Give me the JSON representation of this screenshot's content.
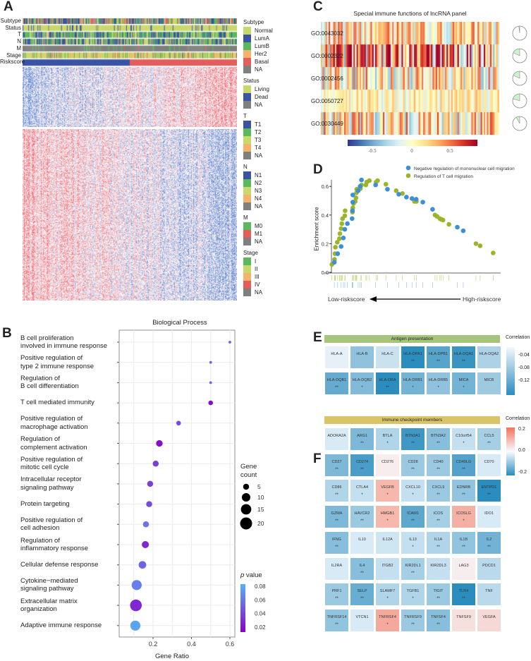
{
  "panels": {
    "a": "A",
    "b": "B",
    "c": "C",
    "d": "D",
    "e": "E",
    "f": "F"
  },
  "panel_a": {
    "annotation_rows": [
      "Subtype",
      "Status",
      "T",
      "N",
      "M",
      "Stage",
      "Riskscore"
    ],
    "riskscore_colors": {
      "low": "#3a53a4",
      "high": "#e35d5d"
    },
    "legend": [
      {
        "title": "Subtype",
        "items": [
          {
            "label": "Normal",
            "color": "#c9d86b"
          },
          {
            "label": "LumA",
            "color": "#3a53a4"
          },
          {
            "label": "LumB",
            "color": "#5cb85c"
          },
          {
            "label": "Her2",
            "color": "#f6b26b"
          },
          {
            "label": "Basal",
            "color": "#e35d5d"
          },
          {
            "label": "NA",
            "color": "#7f7f7f"
          }
        ]
      },
      {
        "title": "Status",
        "items": [
          {
            "label": "Living",
            "color": "#c9d86b"
          },
          {
            "label": "Dead",
            "color": "#3a53a4"
          },
          {
            "label": "NA",
            "color": "#7f7f7f"
          }
        ]
      },
      {
        "title": "T",
        "items": [
          {
            "label": "T1",
            "color": "#3a53a4"
          },
          {
            "label": "T2",
            "color": "#5cb85c"
          },
          {
            "label": "T3",
            "color": "#c9d86b"
          },
          {
            "label": "T4",
            "color": "#f6b26b"
          },
          {
            "label": "NA",
            "color": "#7f7f7f"
          }
        ]
      },
      {
        "title": "N",
        "items": [
          {
            "label": "N1",
            "color": "#3a53a4"
          },
          {
            "label": "N2",
            "color": "#5cb85c"
          },
          {
            "label": "N3",
            "color": "#c9d86b"
          },
          {
            "label": "N4",
            "color": "#f6b26b"
          },
          {
            "label": "NA",
            "color": "#7f7f7f"
          }
        ]
      },
      {
        "title": "M",
        "items": [
          {
            "label": "M0",
            "color": "#5cb85c"
          },
          {
            "label": "M1",
            "color": "#e35d5d"
          },
          {
            "label": "NA",
            "color": "#7f7f7f"
          }
        ]
      },
      {
        "title": "Stage",
        "items": [
          {
            "label": "I",
            "color": "#5cb85c"
          },
          {
            "label": "II",
            "color": "#c9d86b"
          },
          {
            "label": "III",
            "color": "#f6b26b"
          },
          {
            "label": "IV",
            "color": "#e35d5d"
          },
          {
            "label": "NA",
            "color": "#7f7f7f"
          }
        ]
      }
    ]
  },
  "chart_data": [
    {
      "type": "scatter",
      "title": "Biological Process",
      "xlabel": "Gene Ratio",
      "xticks": [
        "0.2",
        "0.4",
        "0.6"
      ],
      "xlim": [
        0.02,
        0.64
      ],
      "categories": [
        "B cell proliferation\ninvolved in immune response",
        "Positive regulation of\ntype 2 immune response",
        "Regulation of\nB cell differentiation",
        "T cell mediated immunity",
        "Positive regulation of\nmacrophage activation",
        "Regulation of\ncomplement activation",
        "Positive regulation of\nmitotic cell cycle",
        "Intracellular receptor\nsignaling pathway",
        "Protein targeting",
        "Positive regulation of\ncell adhesion",
        "Regulation of\ninflammatory response",
        "Cellular defense response",
        "Cytokine−mediated\nsignaling pathway",
        "Extracellular matrix\norganization",
        "Adaptive immune response"
      ],
      "gene_ratio": [
        0.6,
        0.5,
        0.5,
        0.5,
        0.333,
        0.233,
        0.214,
        0.185,
        0.18,
        0.163,
        0.16,
        0.145,
        0.115,
        0.111,
        0.108
      ],
      "gene_count": [
        1,
        1,
        1,
        3,
        3,
        6,
        5,
        5,
        5,
        5,
        7,
        8,
        14,
        19,
        14
      ],
      "p_value": [
        0.05,
        0.055,
        0.055,
        0.02,
        0.045,
        0.02,
        0.04,
        0.04,
        0.045,
        0.06,
        0.03,
        0.055,
        0.065,
        0.03,
        0.08
      ],
      "size_legend": {
        "title": "Gene\ncount",
        "values": [
          "5",
          "10",
          "15",
          "20"
        ]
      },
      "color_legend": {
        "title": "p value",
        "ticks": [
          "0.08",
          "0.06",
          "0.04",
          "0.02"
        ],
        "low_color": "#8b00c9",
        "high_color": "#56b1f7"
      }
    },
    {
      "type": "heatmap",
      "title": "Special immune functions of lncRNA panel",
      "rows": [
        "GO:0043032",
        "GO:0002322",
        "GO:0002456",
        "GO:0050727",
        "GO:0030449"
      ],
      "pie_fraction": [
        0.02,
        0.18,
        0.18,
        0.2,
        0.08
      ],
      "colorbar_ticks": [
        "-0.5",
        "0",
        "0.5"
      ],
      "range": [
        -0.9,
        0.9
      ]
    },
    {
      "type": "scatter",
      "ylabel": "Enrichment score",
      "yticks": [
        "0.0",
        "0.2",
        "0.4",
        "0.6"
      ],
      "ylim": [
        0,
        0.7
      ],
      "xlim": [
        0,
        100
      ],
      "x_left_label": "Low-riskscore",
      "x_right_label": "High-riskscore",
      "series": [
        {
          "name": "Negative regulation of mononuclear cell migration",
          "color": "#3a8fd6",
          "x": [
            4.5,
            6.4,
            8.4,
            9.7,
            10.5,
            12.0,
            14.7,
            14.9,
            15.1,
            15.1,
            18.2,
            19.3,
            20.1,
            28.2,
            35.0,
            41.5,
            45.9,
            49.1,
            51.5,
            55.3,
            60.9,
            75.1,
            78.5
          ],
          "y": [
            0.07,
            0.13,
            0.18,
            0.24,
            0.3,
            0.34,
            0.375,
            0.43,
            0.49,
            0.54,
            0.57,
            0.6,
            0.645,
            0.61,
            0.58,
            0.545,
            0.525,
            0.515,
            0.51,
            0.49,
            0.44,
            0.315,
            0.29
          ]
        },
        {
          "name": "Regulation of T cell migration",
          "color": "#9bb52b",
          "x": [
            3.1,
            4.6,
            4.9,
            5.1,
            6.2,
            7.4,
            7.7,
            8.4,
            8.8,
            9.2,
            10.5,
            10.7,
            14.9,
            15.1,
            15.5,
            16.5,
            16.9,
            17.2,
            17.4,
            19.5,
            20.1,
            22.6,
            23.1,
            24.6,
            28.5,
            29.3,
            34.1,
            40.0,
            43.6,
            50.5,
            51.6,
            62.3,
            63.5,
            65.1,
            65.9,
            66.9,
            70.3,
            85.8,
            88.2,
            95.7
          ],
          "y": [
            0.055,
            0.09,
            0.13,
            0.175,
            0.21,
            0.235,
            0.27,
            0.305,
            0.34,
            0.375,
            0.395,
            0.43,
            0.42,
            0.45,
            0.48,
            0.495,
            0.52,
            0.555,
            0.58,
            0.585,
            0.61,
            0.61,
            0.63,
            0.64,
            0.63,
            0.64,
            0.615,
            0.57,
            0.55,
            0.495,
            0.495,
            0.4,
            0.39,
            0.375,
            0.37,
            0.365,
            0.335,
            0.2,
            0.185,
            0.135
          ]
        }
      ]
    },
    {
      "type": "heatmap",
      "title": "Antigen presentation",
      "header_color": "#a6c47a",
      "legend_title": "Correlation",
      "legend_ticks": [
        "-0.04",
        "-0.08",
        "-0.12"
      ],
      "range": [
        -0.16,
        0
      ],
      "cells": [
        [
          {
            "gene": "HLA-A",
            "v": -0.02,
            "sig": ""
          },
          {
            "gene": "HLA-B",
            "v": -0.08,
            "sig": ""
          },
          {
            "gene": "HLA-C",
            "v": -0.04,
            "sig": ""
          },
          {
            "gene": "HLA-DPA1",
            "v": -0.15,
            "sig": "**"
          },
          {
            "gene": "HLA-DPB1",
            "v": -0.12,
            "sig": "**"
          },
          {
            "gene": "HLA-DQA1",
            "v": -0.14,
            "sig": "**"
          },
          {
            "gene": "HLA-DQA2",
            "v": -0.06,
            "sig": ""
          }
        ],
        [
          {
            "gene": "HLA-DQB1",
            "v": -0.11,
            "sig": "**"
          },
          {
            "gene": "HLA-DQB2",
            "v": -0.09,
            "sig": "*"
          },
          {
            "gene": "HLA-DRA",
            "v": -0.15,
            "sig": "**"
          },
          {
            "gene": "HLA-DRB1",
            "v": -0.1,
            "sig": "*"
          },
          {
            "gene": "HLA-DRB5",
            "v": -0.08,
            "sig": "*"
          },
          {
            "gene": "MICA",
            "v": -0.1,
            "sig": "*"
          },
          {
            "gene": "MICB",
            "v": -0.07,
            "sig": ""
          }
        ]
      ]
    },
    {
      "type": "heatmap",
      "title": "Immune checkpoint members",
      "header_color": "#d9c46a",
      "legend_title": "Correlation",
      "legend_ticks": [
        "0.2",
        "0.0",
        "-0.2"
      ],
      "range": [
        -0.22,
        0.22
      ],
      "cells": [
        [
          {
            "gene": "ADORA2A",
            "v": -0.03,
            "sig": ""
          },
          {
            "gene": "ARG1",
            "v": -0.12,
            "sig": "**"
          },
          {
            "gene": "BTLA",
            "v": -0.07,
            "sig": "*"
          },
          {
            "gene": "BTN3A1",
            "v": -0.18,
            "sig": "**"
          },
          {
            "gene": "BTN3A2",
            "v": -0.11,
            "sig": "**"
          },
          {
            "gene": "C10orf54",
            "v": -0.05,
            "sig": "*"
          },
          {
            "gene": "CCL5",
            "v": -0.08,
            "sig": "**"
          }
        ],
        [
          {
            "gene": "CD27",
            "v": -0.12,
            "sig": "**"
          },
          {
            "gene": "CD274",
            "v": -0.17,
            "sig": "**"
          },
          {
            "gene": "CD276",
            "v": 0.02,
            "sig": ""
          },
          {
            "gene": "CD28",
            "v": -0.09,
            "sig": "**"
          },
          {
            "gene": "CD40",
            "v": -0.09,
            "sig": "**"
          },
          {
            "gene": "CD40LG",
            "v": -0.16,
            "sig": "**"
          },
          {
            "gene": "CD70",
            "v": -0.03,
            "sig": ""
          }
        ],
        [
          {
            "gene": "CD86",
            "v": -0.07,
            "sig": "**"
          },
          {
            "gene": "CTLA4",
            "v": -0.05,
            "sig": "*"
          },
          {
            "gene": "VEGFB",
            "v": 0.1,
            "sig": "*"
          },
          {
            "gene": "CXCL10",
            "v": -0.05,
            "sig": "*"
          },
          {
            "gene": "CXCL9",
            "v": -0.09,
            "sig": "**"
          },
          {
            "gene": "EDNRB",
            "v": -0.1,
            "sig": "**"
          },
          {
            "gene": "ENTPD1",
            "v": -0.2,
            "sig": "**"
          }
        ],
        [
          {
            "gene": "GZMA",
            "v": -0.12,
            "sig": "**"
          },
          {
            "gene": "HAVCR2",
            "v": -0.09,
            "sig": "**"
          },
          {
            "gene": "HMGB1",
            "v": 0.1,
            "sig": "*"
          },
          {
            "gene": "ICAM1",
            "v": -0.15,
            "sig": "**"
          },
          {
            "gene": "ICOS",
            "v": -0.08,
            "sig": "**"
          },
          {
            "gene": "ICOSLG",
            "v": 0.11,
            "sig": "*"
          },
          {
            "gene": "IDO1",
            "v": -0.03,
            "sig": ""
          }
        ],
        [
          {
            "gene": "IFNG",
            "v": -0.11,
            "sig": "**"
          },
          {
            "gene": "IL10",
            "v": -0.03,
            "sig": ""
          },
          {
            "gene": "IL12A",
            "v": -0.04,
            "sig": ""
          },
          {
            "gene": "IL13",
            "v": -0.05,
            "sig": "*"
          },
          {
            "gene": "IL1A",
            "v": -0.07,
            "sig": "**"
          },
          {
            "gene": "IL1B",
            "v": -0.1,
            "sig": "**"
          },
          {
            "gene": "IL2",
            "v": -0.13,
            "sig": "**"
          }
        ],
        [
          {
            "gene": "IL2RA",
            "v": -0.03,
            "sig": ""
          },
          {
            "gene": "IL4",
            "v": -0.11,
            "sig": "**"
          },
          {
            "gene": "ITGB2",
            "v": -0.05,
            "sig": ""
          },
          {
            "gene": "KIR2DL1",
            "v": -0.08,
            "sig": "**"
          },
          {
            "gene": "KIR2DL3",
            "v": -0.05,
            "sig": ""
          },
          {
            "gene": "LAG3",
            "v": 0.02,
            "sig": ""
          },
          {
            "gene": "PDCD1",
            "v": -0.06,
            "sig": ""
          }
        ],
        [
          {
            "gene": "PRF1",
            "v": -0.09,
            "sig": "**"
          },
          {
            "gene": "SELP",
            "v": -0.14,
            "sig": "**"
          },
          {
            "gene": "SLAMF7",
            "v": -0.07,
            "sig": "*"
          },
          {
            "gene": "TGFB1",
            "v": -0.07,
            "sig": "*"
          },
          {
            "gene": "TIGIT",
            "v": -0.09,
            "sig": "**"
          },
          {
            "gene": "TLR4",
            "v": -0.2,
            "sig": "**"
          },
          {
            "gene": "TNF",
            "v": -0.06,
            "sig": ""
          }
        ],
        [
          {
            "gene": "TNFRSF14",
            "v": -0.1,
            "sig": "**"
          },
          {
            "gene": "VTCN1",
            "v": -0.03,
            "sig": ""
          },
          {
            "gene": "TNFRSF4",
            "v": 0.12,
            "sig": "*"
          },
          {
            "gene": "TNFRSF9",
            "v": -0.09,
            "sig": "**"
          },
          {
            "gene": "TNFSF4",
            "v": -0.11,
            "sig": "**"
          },
          {
            "gene": "TNFSF9",
            "v": 0.04,
            "sig": ""
          },
          {
            "gene": "VEGFA",
            "v": 0.05,
            "sig": ""
          }
        ]
      ]
    }
  ]
}
